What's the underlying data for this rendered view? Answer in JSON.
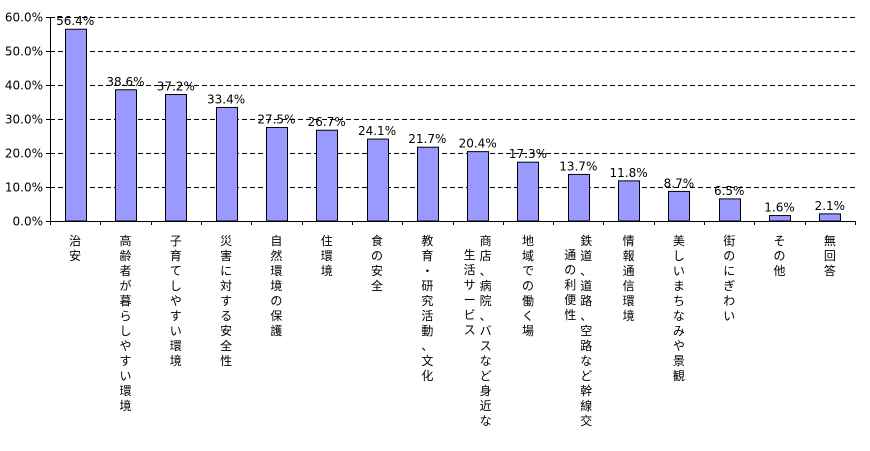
{
  "chart_data": {
    "type": "bar",
    "categories": [
      "治安",
      "高齢者が暮らしやすい環境",
      "子育てしやすい環境",
      "災害に対する安全性",
      "自然環境の保護",
      "住環境",
      "食の安全",
      "教育・研究活動、文化",
      "商店、病院、バスなど身近な生活サービス",
      "地域での働く場",
      "鉄道、道路、空路など幹線交通の利便性",
      "情報通信環境",
      "美しいまちなみや景観",
      "街のにぎわい",
      "その他",
      "無回答"
    ],
    "category_lines": [
      [
        "治安"
      ],
      [
        "高齢者が暮らしやすい環境"
      ],
      [
        "子育てしやすい環境"
      ],
      [
        "災害に対する安全性"
      ],
      [
        "自然環境の保護"
      ],
      [
        "住環境"
      ],
      [
        "食の安全"
      ],
      [
        "教育・研究活動、文化"
      ],
      [
        "商店、病院、バスなど身近な",
        "生活サービス"
      ],
      [
        "地域での働く場"
      ],
      [
        "鉄道、道路、空路など幹線交",
        "通の利便性"
      ],
      [
        "情報通信環境"
      ],
      [
        "美しいまちなみや景観"
      ],
      [
        "街のにぎわい"
      ],
      [
        "その他"
      ],
      [
        "無回答"
      ]
    ],
    "values": [
      56.4,
      38.6,
      37.2,
      33.4,
      27.5,
      26.7,
      24.1,
      21.7,
      20.4,
      17.3,
      13.7,
      11.8,
      8.7,
      6.5,
      1.6,
      2.1
    ],
    "value_labels": [
      "56.4%",
      "38.6%",
      "37.2%",
      "33.4%",
      "27.5%",
      "26.7%",
      "24.1%",
      "21.7%",
      "20.4%",
      "17.3%",
      "13.7%",
      "11.8%",
      "8.7%",
      "6.5%",
      "1.6%",
      "2.1%"
    ],
    "y_ticks": [
      0,
      10,
      20,
      30,
      40,
      50,
      60
    ],
    "y_tick_labels": [
      "0.0%",
      "10.0%",
      "20.0%",
      "30.0%",
      "40.0%",
      "50.0%",
      "60.0%"
    ],
    "ylim": [
      0,
      60
    ],
    "grid": "dashed horizontal",
    "bar_color": "#9999ff",
    "bar_stroke": "#000000"
  }
}
